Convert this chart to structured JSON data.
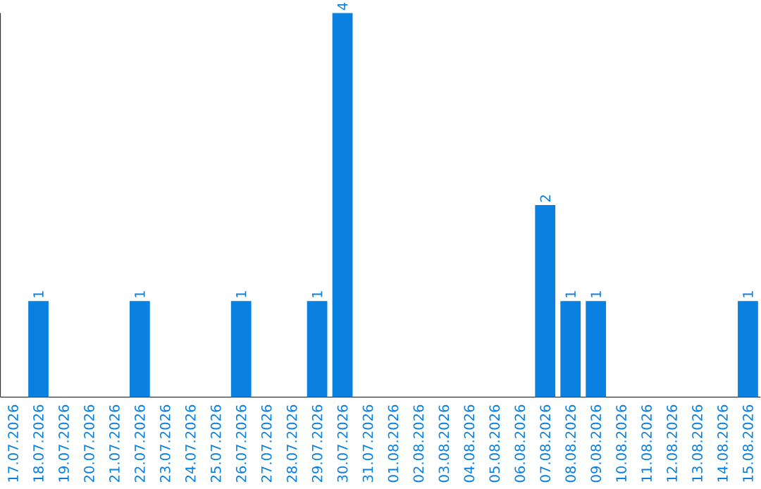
{
  "chart_data": {
    "type": "bar",
    "categories": [
      "17.07.2026",
      "18.07.2026",
      "19.07.2026",
      "20.07.2026",
      "21.07.2026",
      "22.07.2026",
      "23.07.2026",
      "24.07.2026",
      "25.07.2026",
      "26.07.2026",
      "27.07.2026",
      "28.07.2026",
      "29.07.2026",
      "30.07.2026",
      "31.07.2026",
      "01.08.2026",
      "02.08.2026",
      "03.08.2026",
      "04.08.2026",
      "05.08.2026",
      "06.08.2026",
      "07.08.2026",
      "08.08.2026",
      "09.08.2026",
      "10.08.2026",
      "11.08.2026",
      "12.08.2026",
      "13.08.2026",
      "14.08.2026",
      "15.08.2026"
    ],
    "values": [
      0,
      1,
      0,
      0,
      0,
      1,
      0,
      0,
      0,
      1,
      0,
      0,
      1,
      4,
      0,
      0,
      0,
      0,
      0,
      0,
      0,
      2,
      1,
      1,
      0,
      0,
      0,
      0,
      0,
      1
    ],
    "value_labels": [
      null,
      "1",
      null,
      null,
      null,
      "1",
      null,
      null,
      null,
      "1",
      null,
      null,
      "1",
      "4",
      null,
      null,
      null,
      null,
      null,
      null,
      null,
      "2",
      "1",
      "1",
      null,
      null,
      null,
      null,
      null,
      "1"
    ],
    "color": "#0a80e0"
  }
}
